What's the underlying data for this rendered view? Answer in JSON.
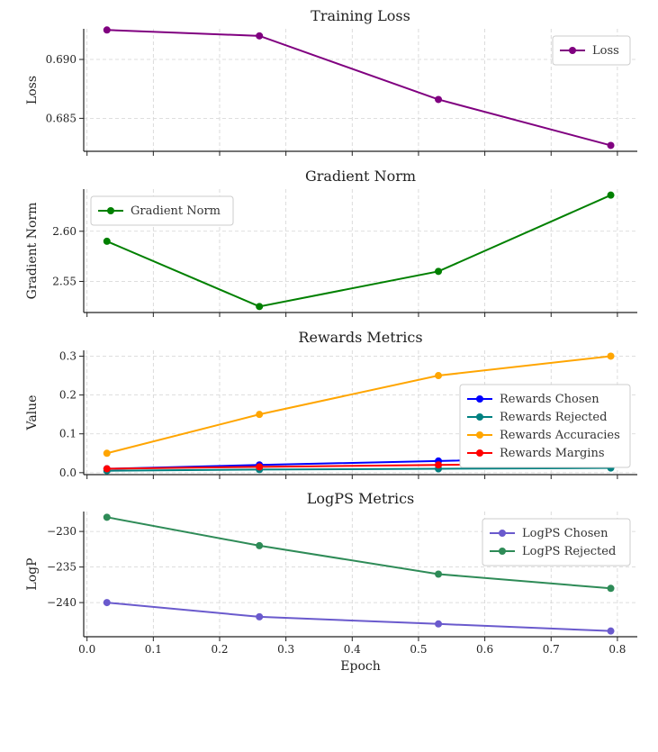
{
  "chart_data": [
    {
      "type": "line",
      "title": "Training Loss",
      "xlabel": "",
      "ylabel": "Loss",
      "x": [
        0.03,
        0.26,
        0.53,
        0.79
      ],
      "xlim": [
        -0.005,
        0.83
      ],
      "ylim": [
        0.6822,
        0.6926
      ],
      "yticks": [
        0.685,
        0.69
      ],
      "ytick_labels": [
        "0.685",
        "0.690"
      ],
      "grid": true,
      "legend": "top-right",
      "series": [
        {
          "name": "Loss",
          "color": "#800080",
          "values": [
            0.6925,
            0.692,
            0.6866,
            0.6827
          ]
        }
      ]
    },
    {
      "type": "line",
      "title": "Gradient Norm",
      "xlabel": "",
      "ylabel": "Gradient Norm",
      "x": [
        0.03,
        0.26,
        0.53,
        0.79
      ],
      "xlim": [
        -0.005,
        0.83
      ],
      "ylim": [
        2.519,
        2.642
      ],
      "yticks": [
        2.55,
        2.6
      ],
      "ytick_labels": [
        "2.55",
        "2.60"
      ],
      "grid": true,
      "legend": "top-left",
      "series": [
        {
          "name": "Gradient Norm",
          "color": "#008000",
          "values": [
            2.59,
            2.525,
            2.56,
            2.636
          ]
        }
      ]
    },
    {
      "type": "line",
      "title": "Rewards Metrics",
      "xlabel": "",
      "ylabel": "Value",
      "x": [
        0.03,
        0.26,
        0.53,
        0.79
      ],
      "xlim": [
        -0.005,
        0.83
      ],
      "ylim": [
        -0.005,
        0.315
      ],
      "yticks": [
        0.0,
        0.1,
        0.2,
        0.3
      ],
      "ytick_labels": [
        "0.0",
        "0.1",
        "0.2",
        "0.3"
      ],
      "grid": true,
      "legend": "lower-right",
      "series": [
        {
          "name": "Rewards Chosen",
          "color": "#0000ff",
          "values": [
            0.01,
            0.02,
            0.03,
            0.04
          ]
        },
        {
          "name": "Rewards Rejected",
          "color": "#008080",
          "values": [
            0.005,
            0.008,
            0.01,
            0.012
          ]
        },
        {
          "name": "Rewards Accuracies",
          "color": "#ffa500",
          "values": [
            0.05,
            0.15,
            0.25,
            0.3
          ]
        },
        {
          "name": "Rewards Margins",
          "color": "#ff0000",
          "values": [
            0.01,
            0.015,
            0.02,
            0.025
          ]
        }
      ]
    },
    {
      "type": "line",
      "title": "LogPS Metrics",
      "xlabel": "Epoch",
      "ylabel": "LogP",
      "x": [
        0.03,
        0.26,
        0.53,
        0.79
      ],
      "xlim": [
        -0.005,
        0.83
      ],
      "ylim": [
        -244.8,
        -227.2
      ],
      "yticks": [
        -240,
        -235,
        -230
      ],
      "ytick_labels": [
        "−240",
        "−235",
        "−230"
      ],
      "xticks": [
        0.0,
        0.1,
        0.2,
        0.3,
        0.4,
        0.5,
        0.6,
        0.7,
        0.8
      ],
      "xtick_labels": [
        "0.0",
        "0.1",
        "0.2",
        "0.3",
        "0.4",
        "0.5",
        "0.6",
        "0.7",
        "0.8"
      ],
      "grid": true,
      "legend": "top-right",
      "series": [
        {
          "name": "LogPS Chosen",
          "color": "#6a5acd",
          "values": [
            -240,
            -242,
            -243,
            -244
          ]
        },
        {
          "name": "LogPS Rejected",
          "color": "#2e8b57",
          "values": [
            -228,
            -232,
            -236,
            -238
          ]
        }
      ]
    }
  ]
}
